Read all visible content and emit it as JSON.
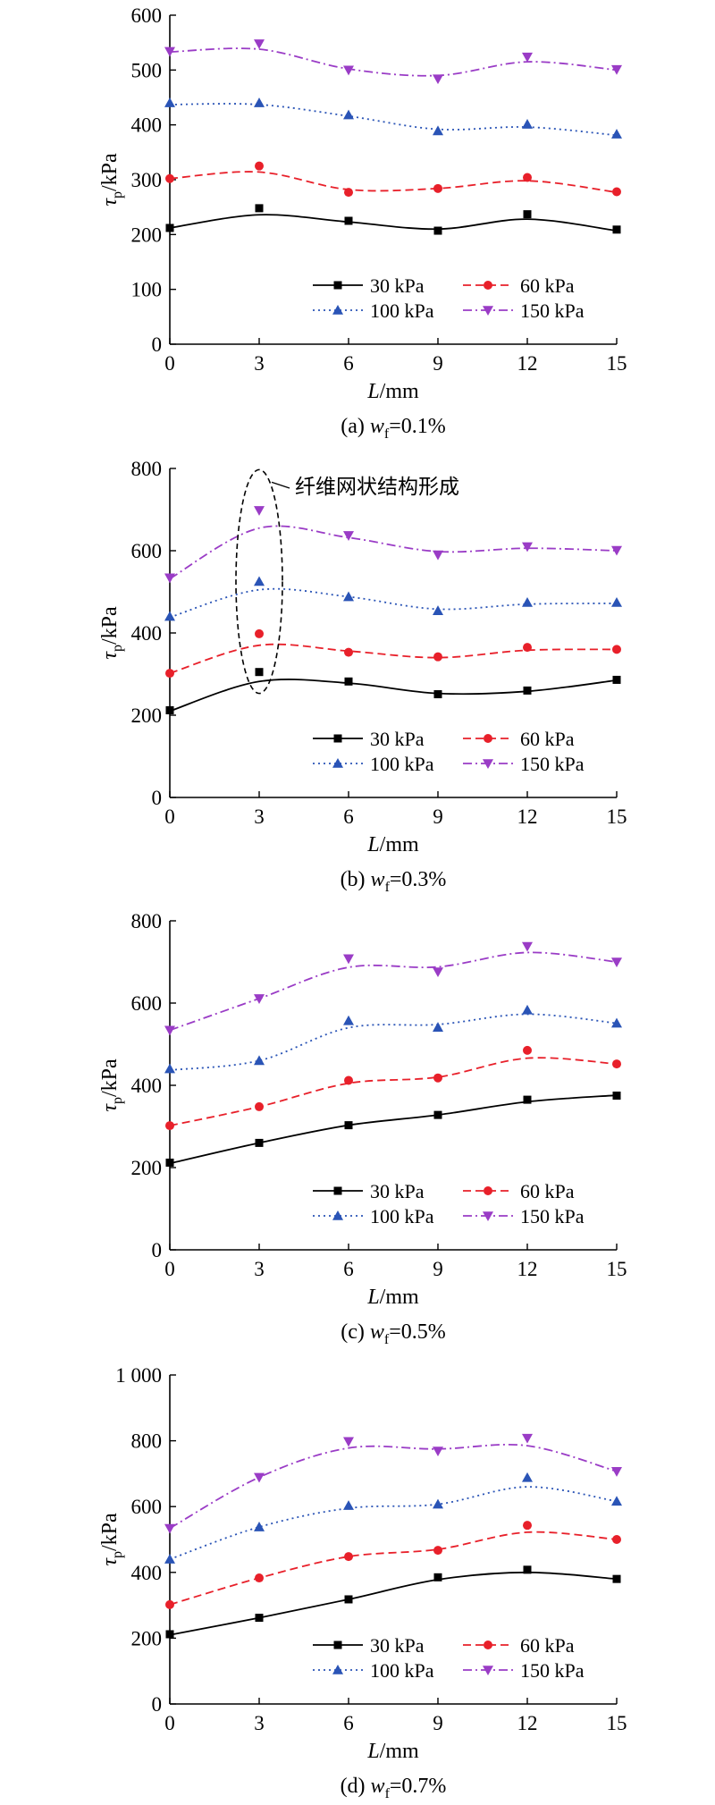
{
  "chart_data": [
    {
      "type": "line",
      "caption": "(a) w_f=0.1%",
      "caption_prefix": "(a) ",
      "caption_var": "w",
      "caption_sub": "f",
      "caption_value": "=0.1%",
      "xlabel": "L/mm",
      "ylabel": "τp/kPa",
      "xlim": [
        0,
        15
      ],
      "ylim": [
        0,
        600
      ],
      "xticks": [
        0,
        3,
        6,
        9,
        12,
        15
      ],
      "xtick_labels": [
        "0",
        "3",
        "6",
        "9",
        "12",
        "15"
      ],
      "yticks": [
        0,
        100,
        200,
        300,
        400,
        500,
        600
      ],
      "ytick_labels": [
        "0",
        "100",
        "200",
        "300",
        "400",
        "500",
        "600"
      ],
      "legend": "bottom-right",
      "grid": false,
      "x": [
        0,
        3,
        6,
        9,
        12,
        15
      ],
      "series": [
        {
          "name": "30 kPa",
          "values": [
            212,
            248,
            225,
            207,
            237,
            209
          ],
          "fit": [
            212,
            236,
            223,
            210,
            228,
            207
          ],
          "color": "#000000",
          "marker": "square",
          "line": "solid"
        },
        {
          "name": "60 kPa",
          "values": [
            302,
            325,
            277,
            284,
            304,
            278
          ],
          "fit": [
            302,
            314,
            282,
            284,
            298,
            277
          ],
          "color": "#e8202a",
          "marker": "circle",
          "line": "dashed"
        },
        {
          "name": "100 kPa",
          "values": [
            440,
            440,
            418,
            389,
            401,
            383
          ],
          "fit": [
            437,
            437,
            416,
            392,
            396,
            381
          ],
          "color": "#2a54b6",
          "marker": "triangle-up",
          "line": "dotted"
        },
        {
          "name": "150 kPa",
          "values": [
            534,
            548,
            500,
            484,
            524,
            501
          ],
          "fit": [
            533,
            538,
            502,
            490,
            515,
            500
          ],
          "color": "#9a3cc6",
          "marker": "triangle-down",
          "line": "dashdot"
        }
      ]
    },
    {
      "type": "line",
      "caption": "(b) w_f=0.3%",
      "caption_prefix": "(b) ",
      "caption_var": "w",
      "caption_sub": "f",
      "caption_value": "=0.3%",
      "xlabel": "L/mm",
      "ylabel": "τp/kPa",
      "xlim": [
        0,
        15
      ],
      "ylim": [
        0,
        800
      ],
      "xticks": [
        0,
        3,
        6,
        9,
        12,
        15
      ],
      "xtick_labels": [
        "0",
        "3",
        "6",
        "9",
        "12",
        "15"
      ],
      "yticks": [
        0,
        200,
        400,
        600,
        800
      ],
      "ytick_labels": [
        "0",
        "200",
        "400",
        "600",
        "800"
      ],
      "legend": "bottom-right",
      "grid": false,
      "annotation": {
        "text": "纤维网状结构形成",
        "x": 3
      },
      "x": [
        0,
        3,
        6,
        9,
        12,
        15
      ],
      "series": [
        {
          "name": "30 kPa",
          "values": [
            212,
            305,
            282,
            251,
            260,
            286
          ],
          "fit": [
            210,
            282,
            278,
            253,
            258,
            285
          ],
          "color": "#000000",
          "marker": "square",
          "line": "solid"
        },
        {
          "name": "60 kPa",
          "values": [
            302,
            398,
            353,
            342,
            365,
            360
          ],
          "fit": [
            302,
            370,
            356,
            340,
            358,
            360
          ],
          "color": "#e8202a",
          "marker": "circle",
          "line": "dashed"
        },
        {
          "name": "100 kPa",
          "values": [
            440,
            525,
            488,
            454,
            474,
            474
          ],
          "fit": [
            438,
            505,
            488,
            458,
            470,
            472
          ],
          "color": "#2a54b6",
          "marker": "triangle-up",
          "line": "dotted"
        },
        {
          "name": "150 kPa",
          "values": [
            534,
            698,
            637,
            590,
            610,
            601
          ],
          "fit": [
            532,
            655,
            632,
            598,
            606,
            600
          ],
          "color": "#9a3cc6",
          "marker": "triangle-down",
          "line": "dashdot"
        }
      ]
    },
    {
      "type": "line",
      "caption": "(c) w_f=0.5%",
      "caption_prefix": "(c) ",
      "caption_var": "w",
      "caption_sub": "f",
      "caption_value": "=0.5%",
      "xlabel": "L/mm",
      "ylabel": "τp/kPa",
      "xlim": [
        0,
        15
      ],
      "ylim": [
        0,
        800
      ],
      "xticks": [
        0,
        3,
        6,
        9,
        12,
        15
      ],
      "xtick_labels": [
        "0",
        "3",
        "6",
        "9",
        "12",
        "15"
      ],
      "yticks": [
        0,
        200,
        400,
        600,
        800
      ],
      "ytick_labels": [
        "0",
        "200",
        "400",
        "600",
        "800"
      ],
      "legend": "bottom-right",
      "grid": false,
      "x": [
        0,
        3,
        6,
        9,
        12,
        15
      ],
      "series": [
        {
          "name": "30 kPa",
          "values": [
            212,
            260,
            303,
            328,
            365,
            375
          ],
          "fit": [
            210,
            260,
            303,
            328,
            360,
            376
          ],
          "color": "#000000",
          "marker": "square",
          "line": "solid"
        },
        {
          "name": "60 kPa",
          "values": [
            302,
            348,
            412,
            418,
            485,
            452
          ],
          "fit": [
            302,
            348,
            405,
            420,
            466,
            452
          ],
          "color": "#e8202a",
          "marker": "circle",
          "line": "dashed"
        },
        {
          "name": "100 kPa",
          "values": [
            440,
            460,
            557,
            541,
            583,
            551
          ],
          "fit": [
            437,
            460,
            540,
            548,
            573,
            551
          ],
          "color": "#2a54b6",
          "marker": "triangle-up",
          "line": "dotted"
        },
        {
          "name": "150 kPa",
          "values": [
            534,
            611,
            708,
            676,
            738,
            700
          ],
          "fit": [
            534,
            611,
            687,
            688,
            723,
            700
          ],
          "color": "#9a3cc6",
          "marker": "triangle-down",
          "line": "dashdot"
        }
      ]
    },
    {
      "type": "line",
      "caption": "(d) w_f=0.7%",
      "caption_prefix": "(d) ",
      "caption_var": "w",
      "caption_sub": "f",
      "caption_value": "=0.7%",
      "xlabel": "L/mm",
      "ylabel": "τp/kPa",
      "xlim": [
        0,
        15
      ],
      "ylim": [
        0,
        1000
      ],
      "xticks": [
        0,
        3,
        6,
        9,
        12,
        15
      ],
      "xtick_labels": [
        "0",
        "3",
        "6",
        "9",
        "12",
        "15"
      ],
      "yticks": [
        0,
        200,
        400,
        600,
        800,
        1000
      ],
      "ytick_labels": [
        "0",
        "200",
        "400",
        "600",
        "800",
        "1 000"
      ],
      "legend": "bottom-right",
      "grid": false,
      "x": [
        0,
        3,
        6,
        9,
        12,
        15
      ],
      "series": [
        {
          "name": "30 kPa",
          "values": [
            212,
            262,
            318,
            385,
            408,
            380
          ],
          "fit": [
            210,
            262,
            318,
            378,
            400,
            380
          ],
          "color": "#000000",
          "marker": "square",
          "line": "solid"
        },
        {
          "name": "60 kPa",
          "values": [
            302,
            383,
            448,
            467,
            543,
            500
          ],
          "fit": [
            302,
            383,
            448,
            470,
            522,
            500
          ],
          "color": "#e8202a",
          "marker": "circle",
          "line": "dashed"
        },
        {
          "name": "100 kPa",
          "values": [
            440,
            538,
            603,
            607,
            688,
            616
          ],
          "fit": [
            440,
            538,
            595,
            607,
            660,
            616
          ],
          "color": "#2a54b6",
          "marker": "triangle-up",
          "line": "dotted"
        },
        {
          "name": "150 kPa",
          "values": [
            534,
            689,
            798,
            769,
            808,
            707
          ],
          "fit": [
            534,
            689,
            778,
            775,
            785,
            707
          ],
          "color": "#9a3cc6",
          "marker": "triangle-down",
          "line": "dashdot"
        }
      ]
    }
  ]
}
